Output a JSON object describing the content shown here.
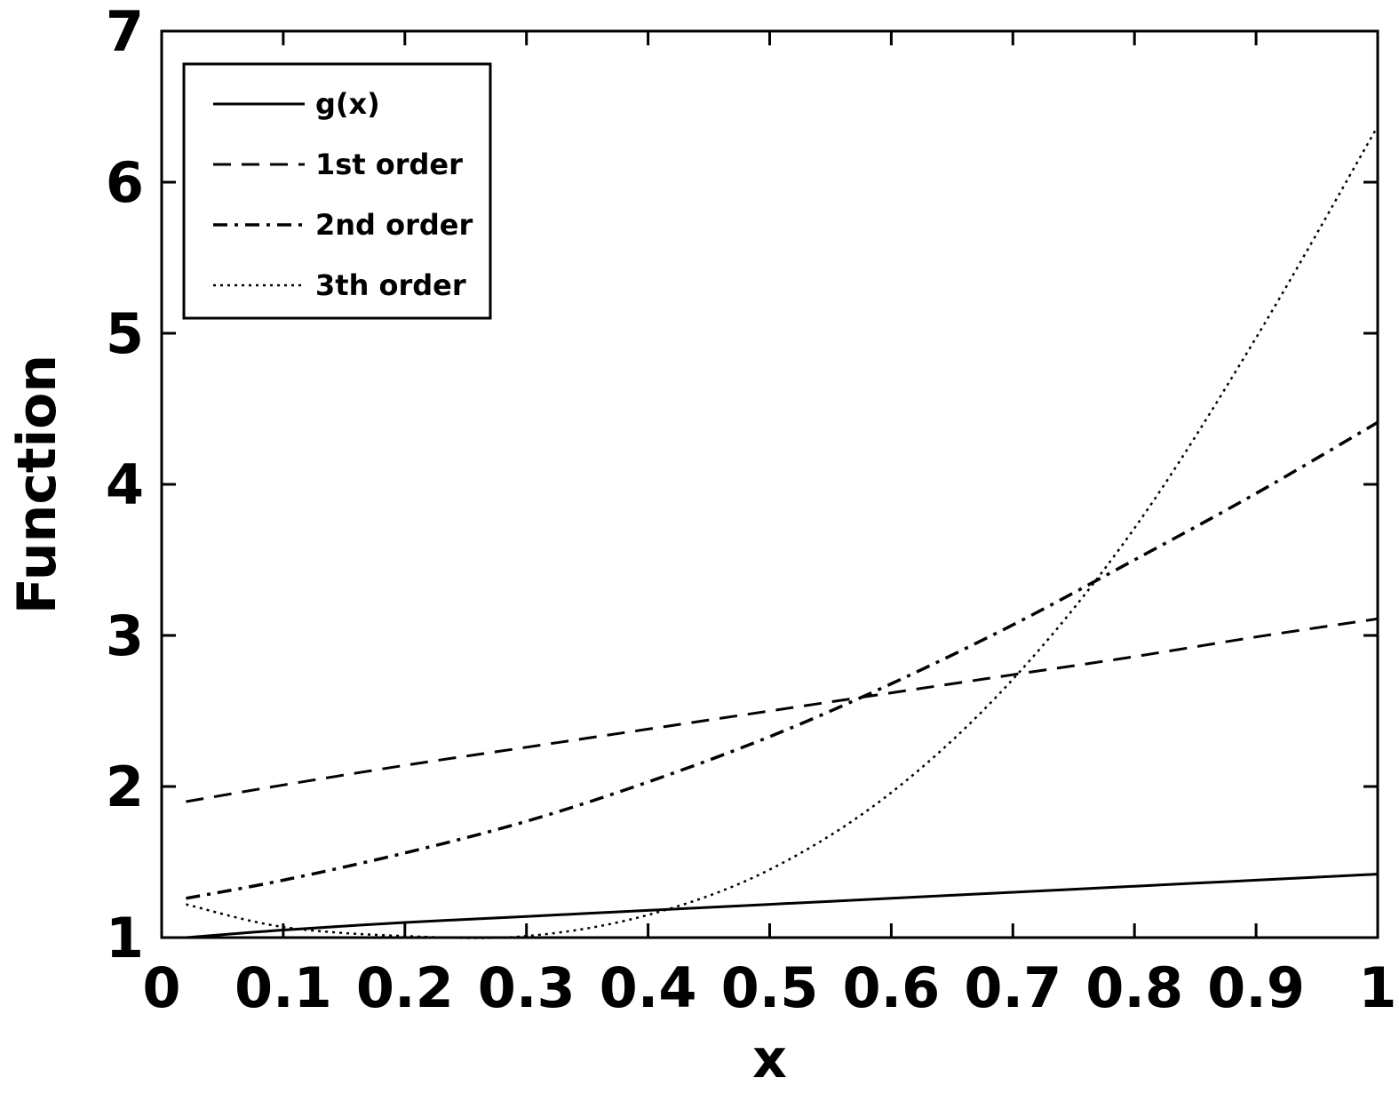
{
  "chart_data": {
    "type": "line",
    "title": "",
    "xlabel": "x",
    "ylabel": "Function",
    "xlim": [
      0,
      1
    ],
    "ylim": [
      1,
      7
    ],
    "xticks": [
      0,
      0.1,
      0.2,
      0.3,
      0.4,
      0.5,
      0.6,
      0.7,
      0.8,
      0.9,
      1
    ],
    "xtick_labels": [
      "0",
      "0.1",
      "0.2",
      "0.3",
      "0.4",
      "0.5",
      "0.6",
      "0.7",
      "0.8",
      "0.9",
      "1"
    ],
    "yticks": [
      1,
      2,
      3,
      4,
      5,
      6,
      7
    ],
    "ytick_labels": [
      "1",
      "2",
      "3",
      "4",
      "5",
      "6",
      "7"
    ],
    "grid": false,
    "legend_position": "top-left",
    "x": [
      0.02,
      0.1,
      0.2,
      0.3,
      0.4,
      0.5,
      0.6,
      0.7,
      0.8,
      0.9,
      1.0
    ],
    "series": [
      {
        "name": "g(x)",
        "style": "solid",
        "values": [
          1.0,
          1.05,
          1.1,
          1.14,
          1.18,
          1.22,
          1.26,
          1.3,
          1.34,
          1.38,
          1.42
        ]
      },
      {
        "name": "1st order",
        "style": "dashed",
        "values": [
          1.9,
          2.01,
          2.14,
          2.26,
          2.38,
          2.5,
          2.62,
          2.74,
          2.86,
          2.99,
          3.11
        ]
      },
      {
        "name": "2nd order",
        "style": "dashdot",
        "values": [
          1.26,
          1.38,
          1.56,
          1.77,
          2.03,
          2.33,
          2.68,
          3.07,
          3.5,
          3.94,
          4.41
        ]
      },
      {
        "name": "3th order",
        "style": "dotted",
        "values": [
          1.22,
          1.07,
          1.01,
          1.01,
          1.15,
          1.45,
          1.96,
          2.71,
          3.71,
          4.97,
          6.37
        ]
      }
    ],
    "colors": {
      "line": "#000000",
      "background": "#ffffff"
    }
  }
}
